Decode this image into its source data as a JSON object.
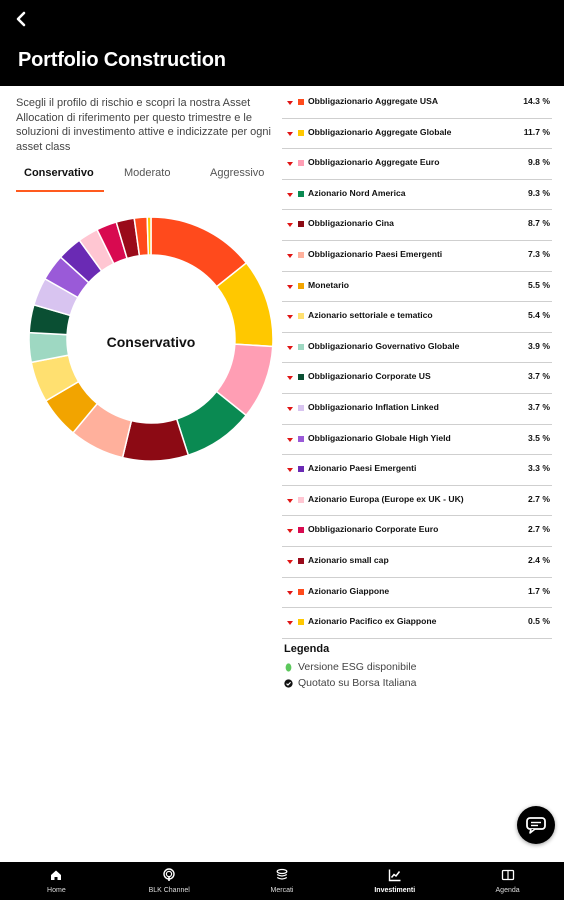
{
  "header": {
    "title": "Portfolio Construction",
    "back_icon": "chevron-left-icon"
  },
  "intro": "Scegli il profilo di rischio e scopri la nostra Asset Allocation di riferimento per questo trimestre e le soluzioni di investimento attive e indicizzate per ogni asset class",
  "tabs": [
    {
      "label": "Conservativo",
      "active": true
    },
    {
      "label": "Moderato",
      "active": false
    },
    {
      "label": "Aggressivo",
      "active": false
    }
  ],
  "donut": {
    "center_label": "Conservativo"
  },
  "allocations": [
    {
      "name": "Obbligazionario Aggregate USA",
      "value": "14.3 %",
      "pct": 14.3,
      "color": "#ff4a1c"
    },
    {
      "name": "Obbligazionario Aggregate Globale",
      "value": "11.7 %",
      "pct": 11.7,
      "color": "#ffc800"
    },
    {
      "name": "Obbligazionario Aggregate Euro",
      "value": "9.8 %",
      "pct": 9.8,
      "color": "#ff9eb4"
    },
    {
      "name": "Azionario Nord America",
      "value": "9.3 %",
      "pct": 9.3,
      "color": "#0a8a52"
    },
    {
      "name": "Obbligazionario Cina",
      "value": "8.7 %",
      "pct": 8.7,
      "color": "#8c0a14"
    },
    {
      "name": "Obbligazionario Paesi Emergenti",
      "value": "7.3 %",
      "pct": 7.3,
      "color": "#ffb09c"
    },
    {
      "name": "Monetario",
      "value": "5.5 %",
      "pct": 5.5,
      "color": "#f2a400"
    },
    {
      "name": "Azionario settoriale e tematico",
      "value": "5.4 %",
      "pct": 5.4,
      "color": "#ffe070"
    },
    {
      "name": "Obbligazionario Governativo Globale",
      "value": "3.9 %",
      "pct": 3.9,
      "color": "#9ed8c2"
    },
    {
      "name": "Obbligazionario Corporate US",
      "value": "3.7 %",
      "pct": 3.7,
      "color": "#0a4f33"
    },
    {
      "name": "Obbligazionario Inflation Linked",
      "value": "3.7 %",
      "pct": 3.7,
      "color": "#d8c4f0"
    },
    {
      "name": "Obbligazionario Globale High Yield",
      "value": "3.5 %",
      "pct": 3.5,
      "color": "#9a5ad8"
    },
    {
      "name": "Azionario Paesi Emergenti",
      "value": "3.3 %",
      "pct": 3.3,
      "color": "#6a2ab4"
    },
    {
      "name": "Azionario Europa (Europe ex UK - UK)",
      "value": "2.7 %",
      "pct": 2.7,
      "color": "#ffc6d2"
    },
    {
      "name": "Obbligazionario Corporate Euro",
      "value": "2.7 %",
      "pct": 2.7,
      "color": "#d80a50"
    },
    {
      "name": "Azionario small cap",
      "value": "2.4 %",
      "pct": 2.4,
      "color": "#9a0a1a"
    },
    {
      "name": "Azionario Giappone",
      "value": "1.7 %",
      "pct": 1.7,
      "color": "#ff4a1c"
    },
    {
      "name": "Azionario Pacifico ex Giappone",
      "value": "0.5 %",
      "pct": 0.5,
      "color": "#ffc800"
    }
  ],
  "colors": {
    "accent": "#ff5a1e",
    "chevron": "#e01414",
    "esg_green": "#5cc85c"
  },
  "legend": {
    "title": "Legenda",
    "items": [
      {
        "icon": "leaf-icon",
        "label": "Versione ESG disponibile"
      },
      {
        "icon": "check-circle-icon",
        "label": "Quotato su Borsa Italiana"
      }
    ]
  },
  "chat_icon": "chat-bubble-icon",
  "nav": [
    {
      "label": "Home",
      "icon": "home-icon",
      "active": false
    },
    {
      "label": "BLK Channel",
      "icon": "podcast-icon",
      "active": false
    },
    {
      "label": "Mercati",
      "icon": "stack-icon",
      "active": false
    },
    {
      "label": "Investimenti",
      "icon": "chart-line-icon",
      "active": true
    },
    {
      "label": "Agenda",
      "icon": "book-icon",
      "active": false
    }
  ]
}
